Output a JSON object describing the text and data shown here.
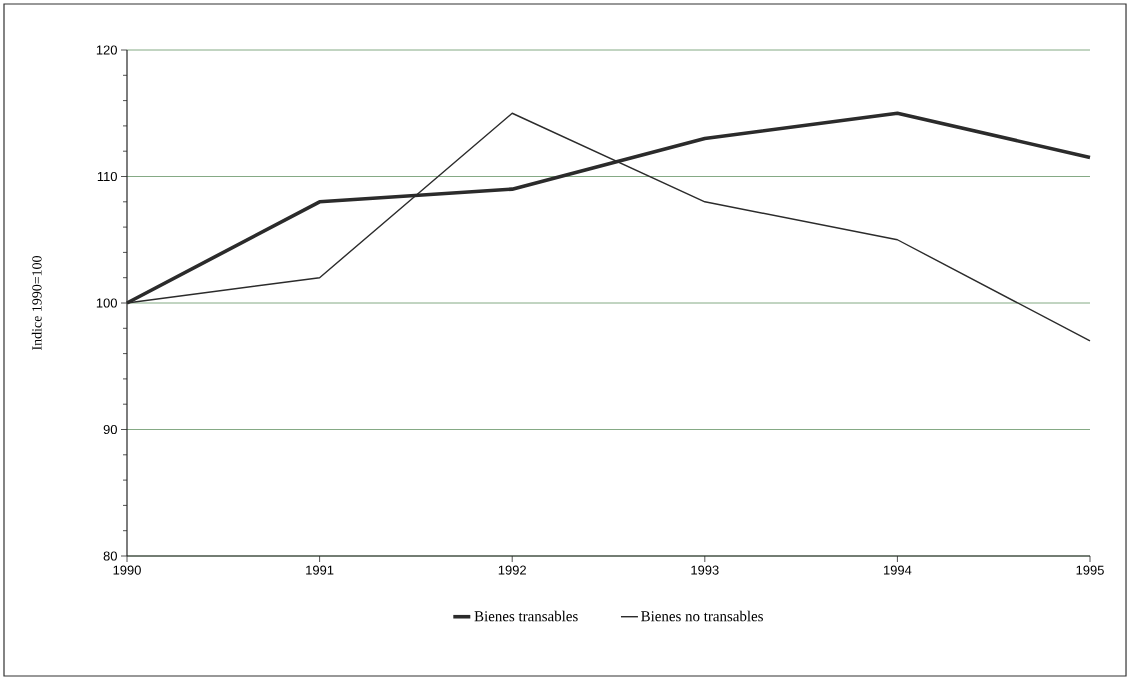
{
  "chart_data": {
    "type": "line",
    "ylabel": "Indice 1990=100",
    "categories": [
      "1990",
      "1991",
      "1992",
      "1993",
      "1994",
      "1995"
    ],
    "series": [
      {
        "name": "Bienes transables",
        "color": "#2b2b2b",
        "values": [
          100,
          108,
          109,
          113,
          115,
          111.5
        ]
      },
      {
        "name": "Bienes no transables",
        "color": "#2b2b2b",
        "values": [
          100,
          102,
          115,
          108,
          105,
          97
        ]
      }
    ],
    "ylim": [
      80,
      120
    ],
    "yticks": [
      80,
      90,
      100,
      110,
      120
    ],
    "grid": "y",
    "legend": "bottom",
    "marker": "none",
    "line_style": "solid"
  }
}
